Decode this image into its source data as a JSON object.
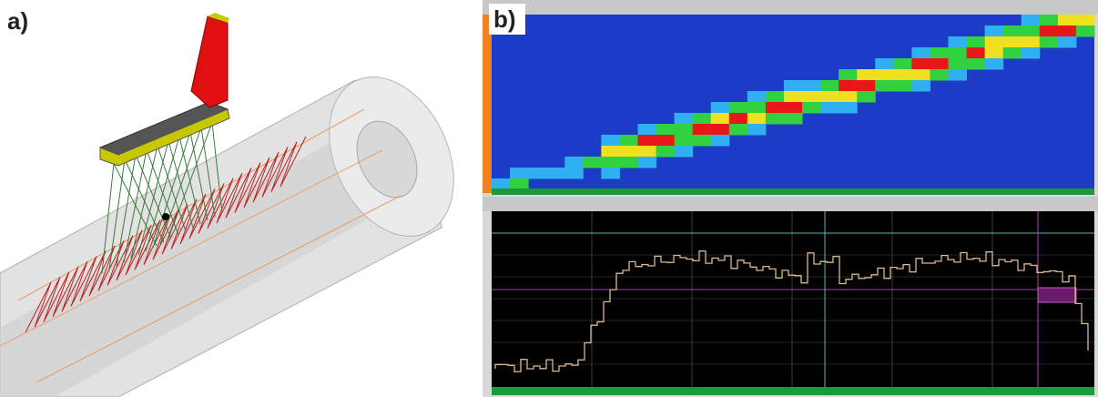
{
  "panel_a": {
    "label": "a)"
  },
  "panel_b": {
    "label": "b)"
  }
}
